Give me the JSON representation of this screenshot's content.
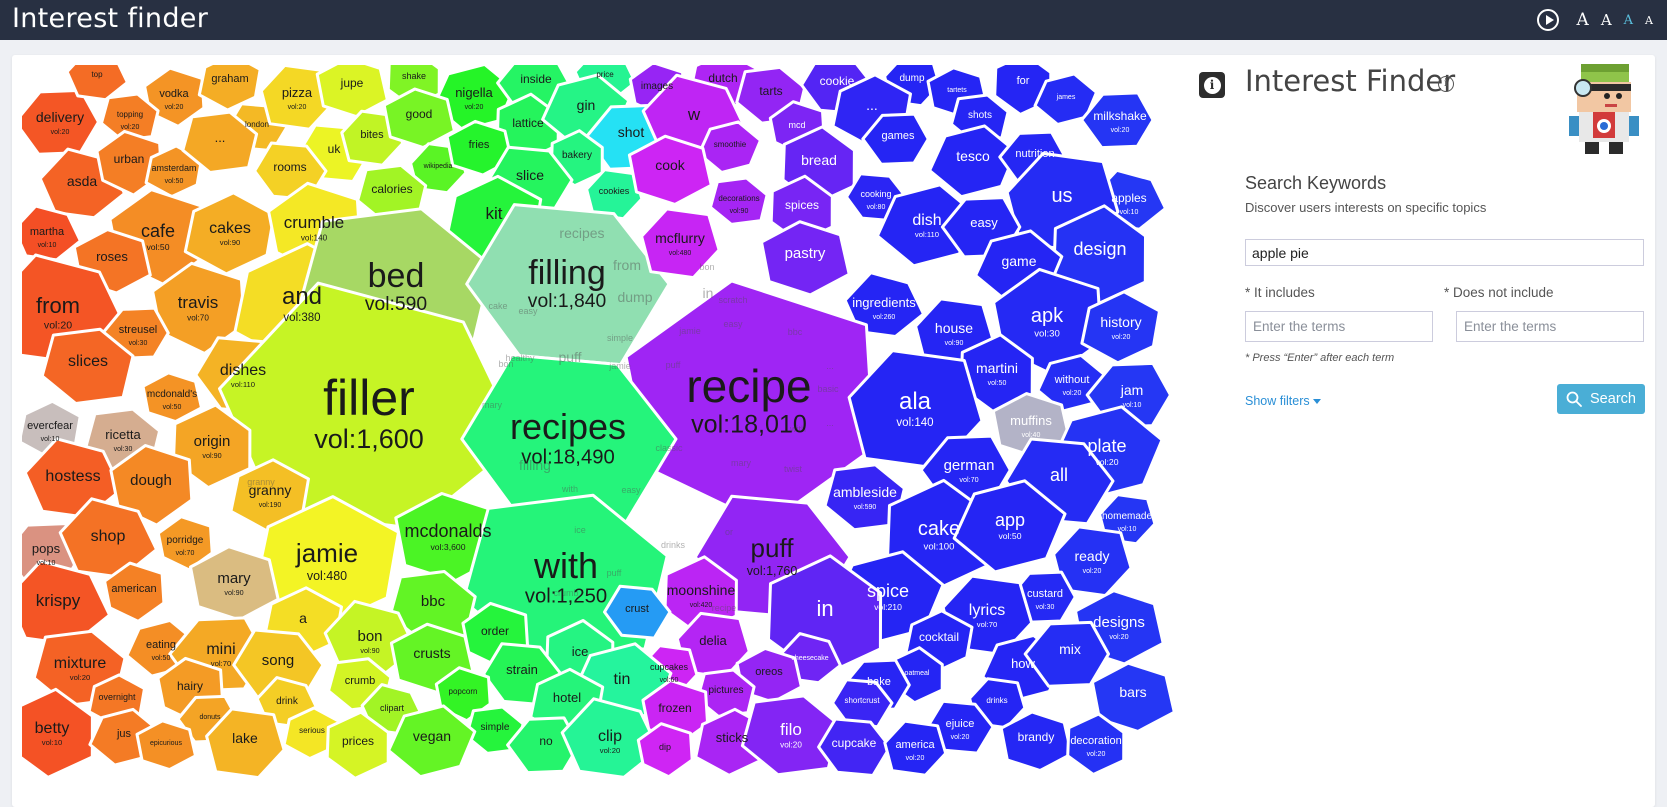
{
  "app": {
    "title": "Interest finder"
  },
  "toolbar": {
    "play_label": "",
    "font_sizes": [
      "A",
      "A",
      "A",
      "A"
    ]
  },
  "panel": {
    "title": "Interest Finder",
    "subtitle": "Search Keywords",
    "description": "Discover users interests on specific topics",
    "keyword_value": "apple pie",
    "includes_label": "* It includes",
    "excludes_label": "* Does not include",
    "includes_placeholder": "Enter the terms",
    "excludes_placeholder": "Enter the terms",
    "hint": "* Press “Enter” after each term",
    "show_filters_label": "Show filters",
    "search_label": "Search"
  },
  "colors": {
    "topbar": "#283042",
    "search_button": "#4aaed6",
    "link": "#2a8fd6"
  },
  "voronoi": {
    "cells": [
      {
        "t": "delivery",
        "v": "vol:20"
      },
      {
        "t": "top",
        "v": ""
      },
      {
        "t": "vodka",
        "v": "vol:20"
      },
      {
        "t": "graham",
        "v": ""
      },
      {
        "t": "topping",
        "v": "vol:20"
      },
      {
        "t": "london",
        "v": ""
      },
      {
        "t": "pizza",
        "v": "vol:20"
      },
      {
        "t": "jupe",
        "v": ""
      },
      {
        "t": "shake",
        "v": ""
      },
      {
        "t": "nigella",
        "v": "vol:20"
      },
      {
        "t": "inside",
        "v": ""
      },
      {
        "t": "price",
        "v": ""
      },
      {
        "t": "images",
        "v": ""
      },
      {
        "t": "dutch",
        "v": ""
      },
      {
        "t": "tarts",
        "v": ""
      },
      {
        "t": "cookie",
        "v": ""
      },
      {
        "t": "dump",
        "v": ""
      },
      {
        "t": "tartets",
        "v": ""
      },
      {
        "t": "for",
        "v": ""
      },
      {
        "t": "james",
        "v": ""
      },
      {
        "t": "milkshake",
        "v": "vol:20"
      },
      {
        "t": "asda",
        "v": ""
      },
      {
        "t": "urban",
        "v": ""
      },
      {
        "t": "amsterdam",
        "v": "vol:50"
      },
      {
        "t": "...",
        "v": ""
      },
      {
        "t": "uk",
        "v": ""
      },
      {
        "t": "bites",
        "v": ""
      },
      {
        "t": "good",
        "v": ""
      },
      {
        "t": "lattice",
        "v": ""
      },
      {
        "t": "gin",
        "v": ""
      },
      {
        "t": "shot",
        "v": ""
      },
      {
        "t": "w",
        "v": ""
      },
      {
        "t": "mcd",
        "v": ""
      },
      {
        "t": "...",
        "v": ""
      },
      {
        "t": "shots",
        "v": ""
      },
      {
        "t": "rooms",
        "v": ""
      },
      {
        "t": "wikipedia",
        "v": ""
      },
      {
        "t": "fries",
        "v": ""
      },
      {
        "t": "bakery",
        "v": ""
      },
      {
        "t": "smoothie",
        "v": ""
      },
      {
        "t": "games",
        "v": ""
      },
      {
        "t": "martha",
        "v": "vol:10"
      },
      {
        "t": "cafe",
        "v": "vol:50"
      },
      {
        "t": "cakes",
        "v": "vol:90"
      },
      {
        "t": "calories",
        "v": ""
      },
      {
        "t": "slice",
        "v": ""
      },
      {
        "t": "cookies",
        "v": ""
      },
      {
        "t": "cook",
        "v": ""
      },
      {
        "t": "bread",
        "v": ""
      },
      {
        "t": "tesco",
        "v": ""
      },
      {
        "t": "nutrition",
        "v": ""
      },
      {
        "t": "apples",
        "v": "vol:10"
      },
      {
        "t": "crumble",
        "v": "vol:140"
      },
      {
        "t": "kit",
        "v": ""
      },
      {
        "t": "decorations",
        "v": "vol:90"
      },
      {
        "t": "cooking",
        "v": "vol:80"
      },
      {
        "t": "us",
        "v": ""
      },
      {
        "t": "roses",
        "v": ""
      },
      {
        "t": "spices",
        "v": ""
      },
      {
        "t": "dish",
        "v": "vol:110"
      },
      {
        "t": "easy",
        "v": ""
      },
      {
        "t": "from",
        "v": "vol:20"
      },
      {
        "t": "travis",
        "v": "vol:70"
      },
      {
        "t": "and",
        "v": "vol:380"
      },
      {
        "t": "bed",
        "v": "vol:590"
      },
      {
        "t": "filling",
        "v": "vol:1,840"
      },
      {
        "t": "mcflurry",
        "v": "vol:480"
      },
      {
        "t": "pastry",
        "v": ""
      },
      {
        "t": "design",
        "v": ""
      },
      {
        "t": "game",
        "v": ""
      },
      {
        "t": "streusel",
        "v": "vol:30"
      },
      {
        "t": "ingredients",
        "v": "vol:260"
      },
      {
        "t": "apk",
        "v": "vol:30"
      },
      {
        "t": "history",
        "v": "vol:20"
      },
      {
        "t": "slices",
        "v": ""
      },
      {
        "t": "dishes",
        "v": "vol:110"
      },
      {
        "t": "house",
        "v": "vol:90"
      },
      {
        "t": "mcdonald's",
        "v": "vol:50"
      },
      {
        "t": "martini",
        "v": "vol:50"
      },
      {
        "t": "without",
        "v": "vol:20"
      },
      {
        "t": "jam",
        "v": "vol:10"
      },
      {
        "t": "filler",
        "v": "vol:1,600"
      },
      {
        "t": "recipe",
        "v": "vol:18,010"
      },
      {
        "t": "evercfear",
        "v": "vol:10"
      },
      {
        "t": "ricetta",
        "v": "vol:30"
      },
      {
        "t": "recipes",
        "v": "vol:18,490"
      },
      {
        "t": "ala",
        "v": "vol:140"
      },
      {
        "t": "muffins",
        "v": "vol:40"
      },
      {
        "t": "origin",
        "v": "vol:90"
      },
      {
        "t": "plate",
        "v": "vol:20"
      },
      {
        "t": "german",
        "v": "vol:70"
      },
      {
        "t": "hostess",
        "v": ""
      },
      {
        "t": "dough",
        "v": ""
      },
      {
        "t": "granny",
        "v": "vol:190"
      },
      {
        "t": "ambleside",
        "v": "vol:590"
      },
      {
        "t": "all",
        "v": ""
      },
      {
        "t": "homemade",
        "v": "vol:10"
      },
      {
        "t": "mcdonalds",
        "v": "vol:3,600"
      },
      {
        "t": "cake",
        "v": "vol:100"
      },
      {
        "t": "app",
        "v": "vol:50"
      },
      {
        "t": "pops",
        "v": "vol:10"
      },
      {
        "t": "shop",
        "v": ""
      },
      {
        "t": "porridge",
        "v": "vol:70"
      },
      {
        "t": "jamie",
        "v": "vol:480"
      },
      {
        "t": "with",
        "v": "vol:1,250"
      },
      {
        "t": "puff",
        "v": "vol:1,760"
      },
      {
        "t": "ready",
        "v": "vol:20"
      },
      {
        "t": "mary",
        "v": "vol:90"
      },
      {
        "t": "moonshine",
        "v": "vol:420"
      },
      {
        "t": "spice",
        "v": "vol:210"
      },
      {
        "t": "custard",
        "v": "vol:30"
      },
      {
        "t": "krispy",
        "v": ""
      },
      {
        "t": "american",
        "v": ""
      },
      {
        "t": "a",
        "v": ""
      },
      {
        "t": "bbc",
        "v": ""
      },
      {
        "t": "crust",
        "v": ""
      },
      {
        "t": "lyrics",
        "v": "vol:70"
      },
      {
        "t": "designs",
        "v": "vol:20"
      },
      {
        "t": "in",
        "v": ""
      },
      {
        "t": "eating",
        "v": "vol:50"
      },
      {
        "t": "mini",
        "v": "vol:70"
      },
      {
        "t": "bon",
        "v": "vol:90"
      },
      {
        "t": "order",
        "v": ""
      },
      {
        "t": "cocktail",
        "v": ""
      },
      {
        "t": "mixture",
        "v": "vol:20"
      },
      {
        "t": "song",
        "v": ""
      },
      {
        "t": "delia",
        "v": ""
      },
      {
        "t": "crusts",
        "v": ""
      },
      {
        "t": "ice",
        "v": ""
      },
      {
        "t": "how",
        "v": ""
      },
      {
        "t": "mix",
        "v": ""
      },
      {
        "t": "cheesecake",
        "v": ""
      },
      {
        "t": "hairy",
        "v": ""
      },
      {
        "t": "overnight",
        "v": ""
      },
      {
        "t": "crumb",
        "v": ""
      },
      {
        "t": "strain",
        "v": ""
      },
      {
        "t": "cupcakes",
        "v": "vol:60"
      },
      {
        "t": "oreos",
        "v": ""
      },
      {
        "t": "oatmeal",
        "v": ""
      },
      {
        "t": "tin",
        "v": ""
      },
      {
        "t": "bake",
        "v": ""
      },
      {
        "t": "drink",
        "v": ""
      },
      {
        "t": "popcorn",
        "v": ""
      },
      {
        "t": "hotel",
        "v": ""
      },
      {
        "t": "pictures",
        "v": ""
      },
      {
        "t": "shortcrust",
        "v": ""
      },
      {
        "t": "drinks",
        "v": ""
      },
      {
        "t": "bars",
        "v": ""
      },
      {
        "t": "betty",
        "v": "vol:10"
      },
      {
        "t": "jus",
        "v": ""
      },
      {
        "t": "donuts",
        "v": ""
      },
      {
        "t": "clipart",
        "v": ""
      },
      {
        "t": "frozen",
        "v": ""
      },
      {
        "t": "serious",
        "v": ""
      },
      {
        "t": "simple",
        "v": ""
      },
      {
        "t": "ejuice",
        "v": "vol:20"
      },
      {
        "t": "lake",
        "v": ""
      },
      {
        "t": "epicurious",
        "v": ""
      },
      {
        "t": "prices",
        "v": ""
      },
      {
        "t": "vegan",
        "v": ""
      },
      {
        "t": "no",
        "v": ""
      },
      {
        "t": "clip",
        "v": "vol:20"
      },
      {
        "t": "dip",
        "v": ""
      },
      {
        "t": "sticks",
        "v": ""
      },
      {
        "t": "filo",
        "v": "vol:20"
      },
      {
        "t": "cupcake",
        "v": ""
      },
      {
        "t": "america",
        "v": "vol:20"
      },
      {
        "t": "brandy",
        "v": ""
      },
      {
        "t": "decoration",
        "v": "vol:20"
      }
    ],
    "inner_words": [
      "recipes",
      "from",
      "dump",
      "cake",
      "easy",
      "healthy",
      "puff",
      "simple",
      "bon",
      "jamie",
      "mary",
      "filling",
      "easy",
      "with",
      "bon",
      "scratch",
      "in",
      "easy",
      "bbc",
      "jamie",
      "puff",
      "basic",
      "...",
      "with",
      "classic",
      "mary",
      "twist",
      "...",
      "granny",
      "ice",
      "crumb",
      "puff",
      "drinks",
      "or",
      "recipe"
    ]
  }
}
